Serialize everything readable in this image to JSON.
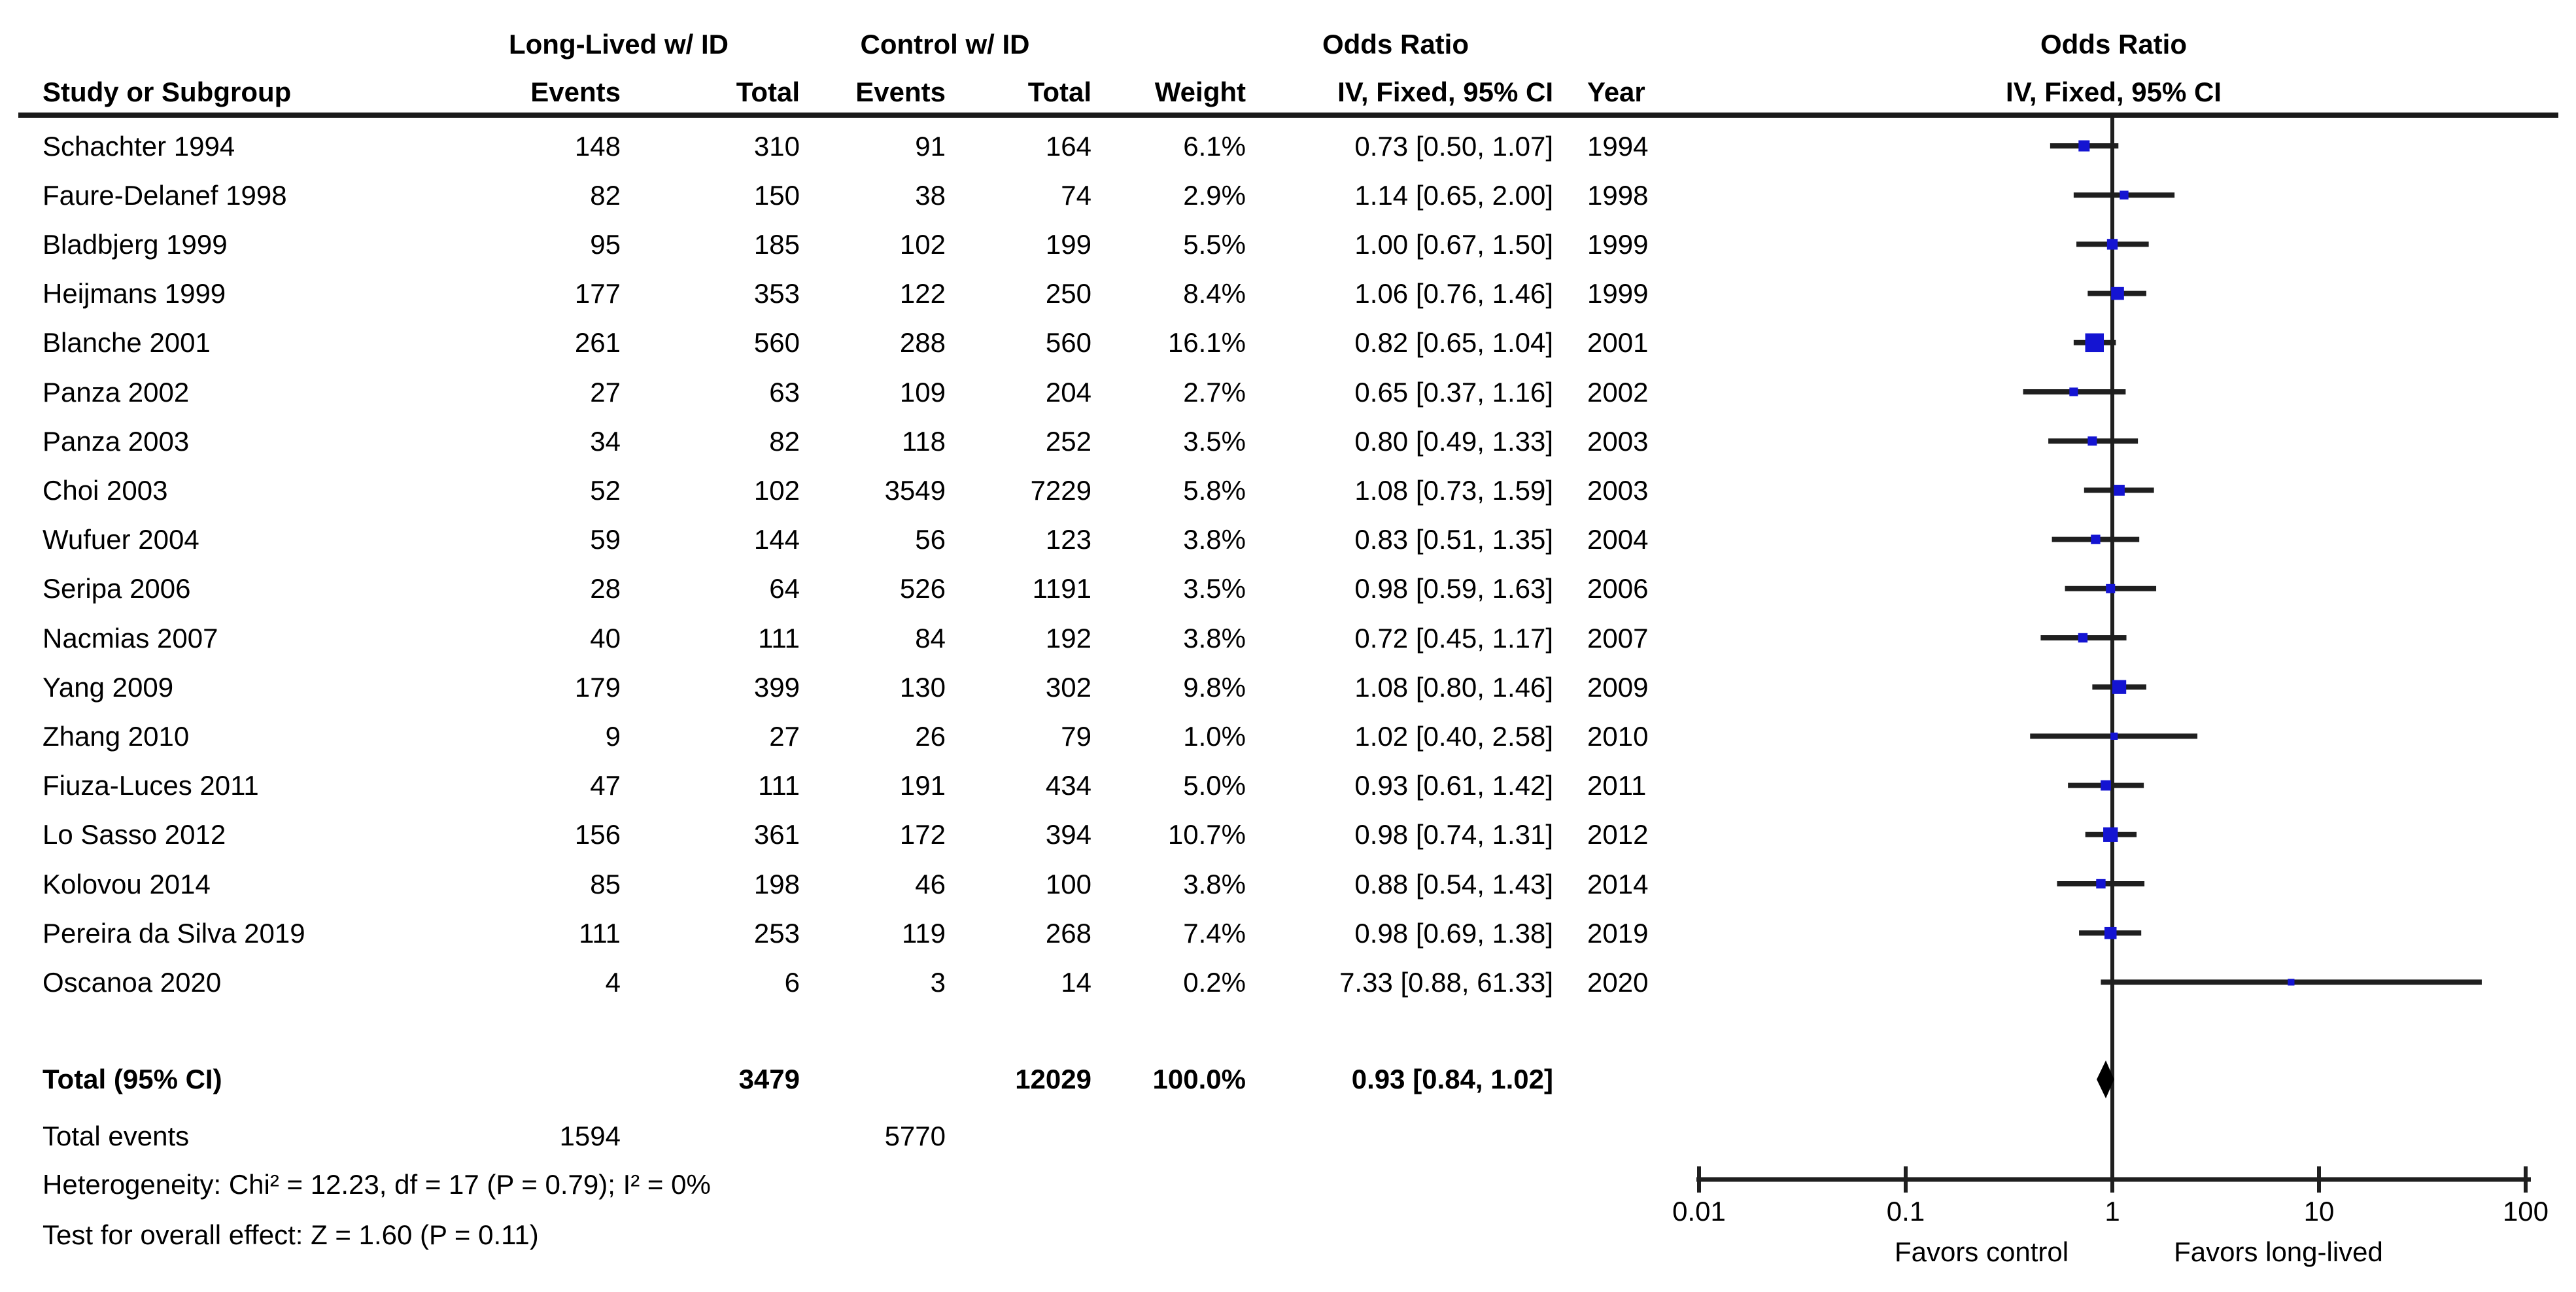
{
  "header": {
    "group_long_lived": "Long-Lived w/ ID",
    "group_control": "Control w/ ID",
    "odds_ratio_left": "Odds Ratio",
    "odds_ratio_left_sub": "IV, Fixed, 95% CI",
    "odds_ratio_right": "Odds Ratio",
    "odds_ratio_right_sub": "IV, Fixed, 95% CI",
    "study": "Study or Subgroup",
    "events1": "Events",
    "total1": "Total",
    "events2": "Events",
    "total2": "Total",
    "weight": "Weight",
    "year": "Year"
  },
  "chart_data": {
    "type": "forest",
    "x_scale": "log",
    "axis_ticks": [
      "0.01",
      "0.1",
      "1",
      "10",
      "100"
    ],
    "axis_tick_values": [
      0.01,
      0.1,
      1,
      10,
      100
    ],
    "favors_left": "Favors control",
    "favors_right": "Favors long-lived",
    "studies": [
      {
        "name": "Schachter 1994",
        "events_ll": "148",
        "total_ll": "310",
        "events_ctrl": "91",
        "total_ctrl": "164",
        "weight": "6.1%",
        "weight_value": 6.1,
        "or_ci": "0.73 [0.50, 1.07]",
        "or": 0.73,
        "ci_low": 0.5,
        "ci_high": 1.07,
        "year": "1994"
      },
      {
        "name": "Faure-Delanef 1998",
        "events_ll": "82",
        "total_ll": "150",
        "events_ctrl": "38",
        "total_ctrl": "74",
        "weight": "2.9%",
        "weight_value": 2.9,
        "or_ci": "1.14 [0.65, 2.00]",
        "or": 1.14,
        "ci_low": 0.65,
        "ci_high": 2.0,
        "year": "1998"
      },
      {
        "name": "Bladbjerg 1999",
        "events_ll": "95",
        "total_ll": "185",
        "events_ctrl": "102",
        "total_ctrl": "199",
        "weight": "5.5%",
        "weight_value": 5.5,
        "or_ci": "1.00 [0.67, 1.50]",
        "or": 1.0,
        "ci_low": 0.67,
        "ci_high": 1.5,
        "year": "1999"
      },
      {
        "name": "Heijmans 1999",
        "events_ll": "177",
        "total_ll": "353",
        "events_ctrl": "122",
        "total_ctrl": "250",
        "weight": "8.4%",
        "weight_value": 8.4,
        "or_ci": "1.06 [0.76, 1.46]",
        "or": 1.06,
        "ci_low": 0.76,
        "ci_high": 1.46,
        "year": "1999"
      },
      {
        "name": "Blanche 2001",
        "events_ll": "261",
        "total_ll": "560",
        "events_ctrl": "288",
        "total_ctrl": "560",
        "weight": "16.1%",
        "weight_value": 16.1,
        "or_ci": "0.82 [0.65, 1.04]",
        "or": 0.82,
        "ci_low": 0.65,
        "ci_high": 1.04,
        "year": "2001"
      },
      {
        "name": "Panza 2002",
        "events_ll": "27",
        "total_ll": "63",
        "events_ctrl": "109",
        "total_ctrl": "204",
        "weight": "2.7%",
        "weight_value": 2.7,
        "or_ci": "0.65 [0.37, 1.16]",
        "or": 0.65,
        "ci_low": 0.37,
        "ci_high": 1.16,
        "year": "2002"
      },
      {
        "name": "Panza 2003",
        "events_ll": "34",
        "total_ll": "82",
        "events_ctrl": "118",
        "total_ctrl": "252",
        "weight": "3.5%",
        "weight_value": 3.5,
        "or_ci": "0.80 [0.49, 1.33]",
        "or": 0.8,
        "ci_low": 0.49,
        "ci_high": 1.33,
        "year": "2003"
      },
      {
        "name": "Choi 2003",
        "events_ll": "52",
        "total_ll": "102",
        "events_ctrl": "3549",
        "total_ctrl": "7229",
        "weight": "5.8%",
        "weight_value": 5.8,
        "or_ci": "1.08 [0.73, 1.59]",
        "or": 1.08,
        "ci_low": 0.73,
        "ci_high": 1.59,
        "year": "2003"
      },
      {
        "name": "Wufuer 2004",
        "events_ll": "59",
        "total_ll": "144",
        "events_ctrl": "56",
        "total_ctrl": "123",
        "weight": "3.8%",
        "weight_value": 3.8,
        "or_ci": "0.83 [0.51, 1.35]",
        "or": 0.83,
        "ci_low": 0.51,
        "ci_high": 1.35,
        "year": "2004"
      },
      {
        "name": "Seripa 2006",
        "events_ll": "28",
        "total_ll": "64",
        "events_ctrl": "526",
        "total_ctrl": "1191",
        "weight": "3.5%",
        "weight_value": 3.5,
        "or_ci": "0.98 [0.59, 1.63]",
        "or": 0.98,
        "ci_low": 0.59,
        "ci_high": 1.63,
        "year": "2006"
      },
      {
        "name": "Nacmias 2007",
        "events_ll": "40",
        "total_ll": "111",
        "events_ctrl": "84",
        "total_ctrl": "192",
        "weight": "3.8%",
        "weight_value": 3.8,
        "or_ci": "0.72 [0.45, 1.17]",
        "or": 0.72,
        "ci_low": 0.45,
        "ci_high": 1.17,
        "year": "2007"
      },
      {
        "name": "Yang 2009",
        "events_ll": "179",
        "total_ll": "399",
        "events_ctrl": "130",
        "total_ctrl": "302",
        "weight": "9.8%",
        "weight_value": 9.8,
        "or_ci": "1.08 [0.80, 1.46]",
        "or": 1.08,
        "ci_low": 0.8,
        "ci_high": 1.46,
        "year": "2009"
      },
      {
        "name": "Zhang 2010",
        "events_ll": "9",
        "total_ll": "27",
        "events_ctrl": "26",
        "total_ctrl": "79",
        "weight": "1.0%",
        "weight_value": 1.0,
        "or_ci": "1.02 [0.40, 2.58]",
        "or": 1.02,
        "ci_low": 0.4,
        "ci_high": 2.58,
        "year": "2010"
      },
      {
        "name": "Fiuza-Luces 2011",
        "events_ll": "47",
        "total_ll": "111",
        "events_ctrl": "191",
        "total_ctrl": "434",
        "weight": "5.0%",
        "weight_value": 5.0,
        "or_ci": "0.93 [0.61, 1.42]",
        "or": 0.93,
        "ci_low": 0.61,
        "ci_high": 1.42,
        "year": "2011"
      },
      {
        "name": "Lo Sasso 2012",
        "events_ll": "156",
        "total_ll": "361",
        "events_ctrl": "172",
        "total_ctrl": "394",
        "weight": "10.7%",
        "weight_value": 10.7,
        "or_ci": "0.98 [0.74, 1.31]",
        "or": 0.98,
        "ci_low": 0.74,
        "ci_high": 1.31,
        "year": "2012"
      },
      {
        "name": "Kolovou 2014",
        "events_ll": "85",
        "total_ll": "198",
        "events_ctrl": "46",
        "total_ctrl": "100",
        "weight": "3.8%",
        "weight_value": 3.8,
        "or_ci": "0.88 [0.54, 1.43]",
        "or": 0.88,
        "ci_low": 0.54,
        "ci_high": 1.43,
        "year": "2014"
      },
      {
        "name": "Pereira da Silva 2019",
        "events_ll": "111",
        "total_ll": "253",
        "events_ctrl": "119",
        "total_ctrl": "268",
        "weight": "7.4%",
        "weight_value": 7.4,
        "or_ci": "0.98 [0.69, 1.38]",
        "or": 0.98,
        "ci_low": 0.69,
        "ci_high": 1.38,
        "year": "2019"
      },
      {
        "name": "Oscanoa 2020",
        "events_ll": "4",
        "total_ll": "6",
        "events_ctrl": "3",
        "total_ctrl": "14",
        "weight": "0.2%",
        "weight_value": 0.2,
        "or_ci": "7.33 [0.88, 61.33]",
        "or": 7.33,
        "ci_low": 0.88,
        "ci_high": 61.33,
        "year": "2020"
      }
    ],
    "total": {
      "label": "Total (95% CI)",
      "total_ll": "3479",
      "total_ctrl": "12029",
      "weight": "100.0%",
      "or_ci": "0.93 [0.84, 1.02]",
      "or": 0.93,
      "ci_low": 0.84,
      "ci_high": 1.02
    },
    "total_events": {
      "label": "Total events",
      "events_ll": "1594",
      "events_ctrl": "5770"
    },
    "heterogeneity": "Heterogeneity: Chi² = 12.23, df = 17 (P = 0.79); I² = 0%",
    "overall_effect": "Test for overall effect: Z = 1.60 (P = 0.11)"
  },
  "colors": {
    "marker_blue": "#1414d2",
    "ci_line": "#1f1f1f",
    "diamond": "#000000",
    "axis": "#1f1f1f",
    "text": "#000000"
  }
}
